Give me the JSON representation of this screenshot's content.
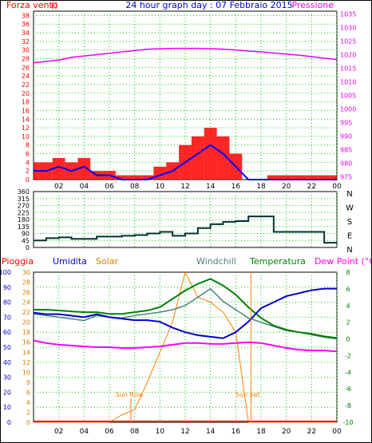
{
  "header": {
    "left": "Forza vento",
    "unit": "()",
    "center": "24 hour graph day : 07 Febbraio 2015",
    "right": "Pressione"
  },
  "bottom_header": {
    "rain": "Pioggia",
    "humidity": "Umidita",
    "solar": "Solar",
    "windchill": "Windchill",
    "temperature": "Temperatura",
    "dewpoint": "Dew Point (°C)"
  },
  "colors": {
    "wind": "#ff0000",
    "wind_avg": "#0000ff",
    "pressure": "#ee00ee",
    "direction": "#003333",
    "rain": "#ff0000",
    "humidity": "#0000cc",
    "solar": "#ff7f00",
    "windchill": "#4f7f7f",
    "temperature": "#008000",
    "dewpoint": "#ff00ff",
    "grid": "#00cc00"
  },
  "chart_data": [
    {
      "type": "line",
      "x_ticks": [
        "02",
        "04",
        "06",
        "08",
        "10",
        "12",
        "14",
        "16",
        "18",
        "20",
        "22",
        "00"
      ],
      "y_left_ticks": [
        "0",
        "2",
        "4",
        "6",
        "8",
        "10",
        "12",
        "14",
        "16",
        "18",
        "20",
        "22",
        "24",
        "26",
        "28",
        "30",
        "32",
        "34",
        "36",
        "38"
      ],
      "y_left_range": [
        0,
        39
      ],
      "y_right_ticks": [
        "975",
        "980",
        "985",
        "990",
        "995",
        "1000",
        "1005",
        "1010",
        "1015",
        "1020",
        "1025",
        "1030",
        "1035"
      ],
      "y_right_range": [
        974,
        1036
      ],
      "x": [
        0,
        1,
        2,
        3,
        4,
        5,
        6,
        7,
        8,
        9,
        10,
        11,
        12,
        13,
        14,
        15,
        16,
        17,
        18,
        19,
        20,
        21,
        22,
        23,
        24
      ],
      "series": [
        {
          "key": "wind_gust",
          "values": [
            4,
            4,
            5,
            4,
            5,
            2,
            2,
            1,
            1,
            1,
            3,
            4,
            8,
            10,
            12,
            10,
            6,
            0,
            0,
            1,
            1,
            1,
            1,
            1,
            1
          ]
        },
        {
          "key": "wind_avg",
          "values": [
            2,
            2,
            3,
            2,
            3,
            1,
            1,
            0,
            0,
            0,
            1,
            2,
            4,
            6,
            8,
            6,
            3,
            0,
            0,
            0,
            0,
            0,
            0,
            0,
            0
          ]
        },
        {
          "key": "pressure",
          "values": [
            1017,
            1017.5,
            1018,
            1019,
            1019.5,
            1020,
            1020.5,
            1021,
            1021.5,
            1022,
            1022.2,
            1022.3,
            1022.3,
            1022.3,
            1022.2,
            1022,
            1021.7,
            1021.3,
            1021,
            1020.6,
            1020.2,
            1019.8,
            1019.3,
            1018.7,
            1018.2
          ]
        }
      ]
    },
    {
      "type": "line",
      "x_ticks": [
        "02",
        "04",
        "06",
        "08",
        "10",
        "12",
        "14",
        "16",
        "18",
        "20",
        "22",
        "00"
      ],
      "y_left_ticks": [
        "0",
        "45",
        "90",
        "135",
        "180",
        "225",
        "270",
        "315",
        "360"
      ],
      "y_range": [
        0,
        360
      ],
      "y_right_labels": [
        "N",
        "W",
        "S",
        "E",
        "N"
      ],
      "x": [
        0,
        1,
        2,
        3,
        4,
        5,
        6,
        7,
        8,
        9,
        10,
        11,
        12,
        13,
        14,
        15,
        16,
        17,
        18,
        19,
        20,
        21,
        22,
        23,
        24
      ],
      "series": [
        {
          "key": "wind_direction",
          "values": [
            45,
            60,
            65,
            55,
            55,
            70,
            70,
            75,
            80,
            90,
            100,
            75,
            90,
            125,
            150,
            165,
            170,
            200,
            200,
            100,
            100,
            100,
            100,
            30,
            30
          ]
        }
      ]
    },
    {
      "type": "line",
      "x_ticks": [
        "02",
        "04",
        "06",
        "08",
        "10",
        "12",
        "14",
        "16",
        "18",
        "20",
        "22",
        "00"
      ],
      "y_left1_ticks": [
        "0",
        "10",
        "20",
        "30",
        "40",
        "50",
        "60",
        "70",
        "80",
        "90",
        "100"
      ],
      "y_left2_ticks": [
        "0",
        "2",
        "4",
        "6",
        "8",
        "10",
        "12",
        "14",
        "16",
        "18",
        "20",
        "22",
        "24",
        "26",
        "28",
        "30"
      ],
      "y_right_ticks": [
        "-10",
        "-8",
        "-6",
        "-4",
        "-2",
        "0",
        "2",
        "4",
        "6",
        "8"
      ],
      "y_humidity_range": [
        0,
        100
      ],
      "y_temp_range": [
        -10,
        8
      ],
      "annotations": [
        "Sun Rise",
        "Sun Set"
      ],
      "x": [
        0,
        1,
        2,
        3,
        4,
        5,
        6,
        7,
        8,
        9,
        10,
        11,
        12,
        13,
        14,
        15,
        16,
        17,
        18,
        19,
        20,
        21,
        22,
        23,
        24
      ],
      "series": [
        {
          "key": "humidity",
          "values": [
            73,
            72,
            72,
            71,
            70,
            72,
            70,
            69,
            68,
            68,
            67,
            63,
            60,
            58,
            57,
            56,
            60,
            67,
            76,
            80,
            84,
            86,
            88,
            89,
            89
          ]
        },
        {
          "key": "temperature",
          "values": [
            3.5,
            3.5,
            3.4,
            3.3,
            3.2,
            3.2,
            3.0,
            3.0,
            3.2,
            3.4,
            3.8,
            4.8,
            5.8,
            6.6,
            7.2,
            6.4,
            5.3,
            3.8,
            2.5,
            1.6,
            1.1,
            0.8,
            0.6,
            0.3,
            0.1
          ]
        },
        {
          "key": "windchill",
          "values": [
            3,
            2.8,
            2.6,
            2.4,
            2.2,
            2.8,
            2.6,
            2.5,
            2.8,
            3,
            3.2,
            3.5,
            4,
            5,
            6,
            4.5,
            3.5,
            2.5,
            2,
            1.5,
            1,
            0.8,
            0.5,
            0.2,
            0
          ]
        },
        {
          "key": "dewpoint",
          "values": [
            -0.2,
            -0.5,
            -0.7,
            -0.8,
            -0.9,
            -1.0,
            -1.0,
            -1.1,
            -1.1,
            -1.0,
            -0.9,
            -0.7,
            -0.5,
            -0.5,
            -0.6,
            -0.6,
            -0.5,
            -0.4,
            -0.5,
            -0.8,
            -1.1,
            -1.3,
            -1.4,
            -1.4,
            -1.5
          ]
        },
        {
          "key": "solar",
          "values": [
            0,
            0,
            0,
            0,
            0,
            0,
            0,
            1.5,
            2.5,
            8,
            14,
            20,
            30,
            25,
            24,
            22,
            18,
            0,
            0,
            0,
            0,
            0,
            0,
            0,
            0
          ]
        },
        {
          "key": "rain",
          "values": [
            0,
            0,
            0,
            0,
            0,
            0,
            0,
            0,
            0,
            0,
            0,
            0,
            0,
            0,
            0,
            0,
            0,
            0,
            0,
            0,
            0,
            0,
            0,
            0,
            0
          ]
        }
      ]
    }
  ]
}
